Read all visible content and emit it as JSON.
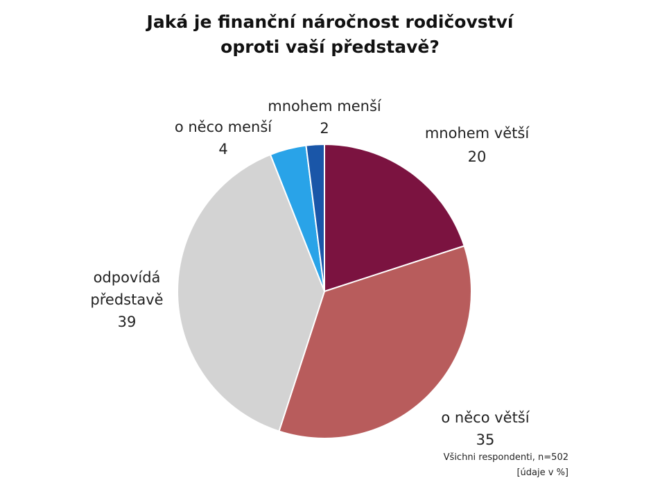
{
  "chart_data": {
    "type": "pie",
    "title": "Jaká je finanční náročnost rodičovství oproti vaší představě?",
    "categories": [
      "mnohem větší",
      "o něco větší",
      "odpovídá představě",
      "o něco menší",
      "mnohem menší"
    ],
    "values": [
      20,
      35,
      39,
      4,
      2
    ],
    "colors": [
      "#7b1340",
      "#b85c5c",
      "#d3d3d3",
      "#29a3e8",
      "#1a56a8"
    ],
    "notes": [
      "Všichni respondenti, n=502",
      "[údaje v %]"
    ]
  }
}
